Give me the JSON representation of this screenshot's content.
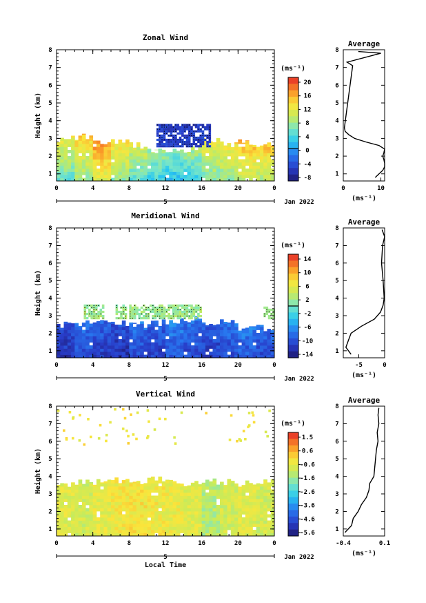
{
  "chart_data": [
    {
      "type": "heatmap",
      "title": "Zonal Wind",
      "ylabel": "Height (km)",
      "x_ticks": [
        "0",
        "4",
        "8",
        "12",
        "16",
        "20",
        "0"
      ],
      "y_ticks": [
        "1",
        "2",
        "3",
        "4",
        "5",
        "6",
        "7",
        "8"
      ],
      "xlim": [
        0,
        24
      ],
      "ylim": [
        0.6,
        8
      ],
      "date_marker": "5",
      "date_label": "Jan 2022",
      "colorbar_unit": "(ms⁻¹)",
      "colorbar_ticks": [
        "20",
        "16",
        "12",
        "8",
        "4",
        "0",
        "-4",
        "-8"
      ],
      "colorbar_range": [
        -10,
        22
      ],
      "contour_level": 0,
      "data_region": {
        "height_top": [
          3.0,
          3.1,
          2.8,
          2.9,
          2.6,
          2.4,
          2.3,
          2.4,
          2.9,
          2.7,
          2.8,
          2.7
        ],
        "negative_patch": {
          "x": [
            11,
            17
          ],
          "y": [
            2.5,
            3.8
          ],
          "value": -6
        },
        "typical_values": [
          8,
          10,
          14,
          10,
          8,
          6,
          5,
          6,
          9,
          10,
          12,
          12
        ]
      },
      "average_profile": {
        "title": "Average",
        "xlabel": "(ms⁻¹)",
        "x_ticks": [
          "0",
          "10"
        ],
        "xlim": [
          0,
          11
        ],
        "y": [
          0.8,
          1.0,
          1.2,
          1.4,
          1.6,
          1.8,
          2.0,
          2.2,
          2.4,
          2.6,
          2.8,
          3.0,
          3.2,
          3.4,
          3.6,
          7.1,
          7.3,
          7.8,
          7.9
        ],
        "x": [
          8.5,
          9.5,
          10.5,
          11,
          11,
          10.8,
          10.5,
          10.8,
          11,
          9.5,
          6,
          3,
          1.5,
          0.5,
          0.3,
          2.5,
          1,
          10,
          4
        ]
      }
    },
    {
      "type": "heatmap",
      "title": "Meridional Wind",
      "ylabel": "Height (km)",
      "x_ticks": [
        "0",
        "4",
        "8",
        "12",
        "16",
        "20",
        "0"
      ],
      "y_ticks": [
        "1",
        "2",
        "3",
        "4",
        "5",
        "6",
        "7",
        "8"
      ],
      "xlim": [
        0,
        24
      ],
      "ylim": [
        0.6,
        8
      ],
      "date_marker": "5",
      "date_label": "Jan 2022",
      "colorbar_unit": "(ms⁻¹)",
      "colorbar_ticks": [
        "14",
        "10",
        "6",
        "2",
        "-2",
        "-6",
        "-10",
        "-14"
      ],
      "colorbar_range": [
        -16,
        16
      ],
      "contour_level": 0,
      "data_region": {
        "height_top": [
          2.5,
          2.6,
          2.7,
          2.6,
          2.5,
          2.6,
          2.7,
          2.8,
          2.6,
          2.6,
          2.2,
          2.3
        ],
        "positive_band": {
          "x": [
            3,
            16
          ],
          "y": [
            2.8,
            3.6
          ],
          "value": 2
        },
        "typical_values": [
          -12,
          -10,
          -11,
          -12,
          -10,
          -11,
          -9,
          -10,
          -11,
          -10,
          -9,
          -10
        ]
      },
      "average_profile": {
        "title": "Average",
        "xlabel": "(ms⁻¹)",
        "x_ticks": [
          "-5",
          "0"
        ],
        "xlim": [
          -8,
          0
        ],
        "y": [
          0.8,
          1.2,
          1.6,
          2.0,
          2.4,
          2.8,
          3.2,
          3.6,
          4.0,
          5.0,
          6.0,
          7.0,
          7.5,
          7.9
        ],
        "x": [
          -6.5,
          -7.5,
          -7,
          -6.5,
          -4.5,
          -2,
          -0.8,
          -0.3,
          -0.1,
          -0.3,
          -0.6,
          -0.4,
          0,
          -0.5
        ]
      }
    },
    {
      "type": "heatmap",
      "title": "Vertical Wind",
      "xlabel": "Local Time",
      "ylabel": "Height (km)",
      "x_ticks": [
        "0",
        "4",
        "8",
        "12",
        "16",
        "20",
        "0"
      ],
      "y_ticks": [
        "1",
        "2",
        "3",
        "4",
        "5",
        "6",
        "7",
        "8"
      ],
      "xlim": [
        0,
        24
      ],
      "ylim": [
        0.6,
        8
      ],
      "date_marker": "5",
      "date_label": "Jan 2022",
      "colorbar_unit": "(ms⁻¹)",
      "colorbar_ticks": [
        "1.5",
        "0.6",
        "-0.6",
        "-1.6",
        "-2.6",
        "-3.6",
        "-4.6",
        "-5.6"
      ],
      "colorbar_range": [
        -6,
        2
      ],
      "data_region": {
        "height_top": [
          3.6,
          3.7,
          3.7,
          3.8,
          3.7,
          3.8,
          3.7,
          3.6,
          3.7,
          3.7,
          3.6,
          3.7
        ],
        "typical_values": [
          -0.6,
          -0.8,
          -0.5,
          -0.3,
          -0.2,
          -0.3,
          -0.4,
          -0.6,
          -1.2,
          -0.8,
          -0.6,
          -0.8
        ]
      },
      "average_profile": {
        "title": "Average",
        "xlabel": "(ms⁻¹)",
        "x_ticks": [
          "-0.4",
          "0.1"
        ],
        "xlim": [
          -0.4,
          0.1
        ],
        "y": [
          0.8,
          1.2,
          1.6,
          2.0,
          2.4,
          2.8,
          3.2,
          3.6,
          4.0,
          4.5,
          5.0,
          5.5,
          6.0,
          6.5,
          7.0,
          7.5,
          7.9
        ],
        "x": [
          -0.38,
          -0.3,
          -0.28,
          -0.22,
          -0.18,
          -0.12,
          -0.09,
          -0.08,
          -0.03,
          -0.02,
          -0.01,
          0.0,
          0.02,
          0.01,
          0.03,
          0.02,
          0.03
        ]
      }
    }
  ]
}
